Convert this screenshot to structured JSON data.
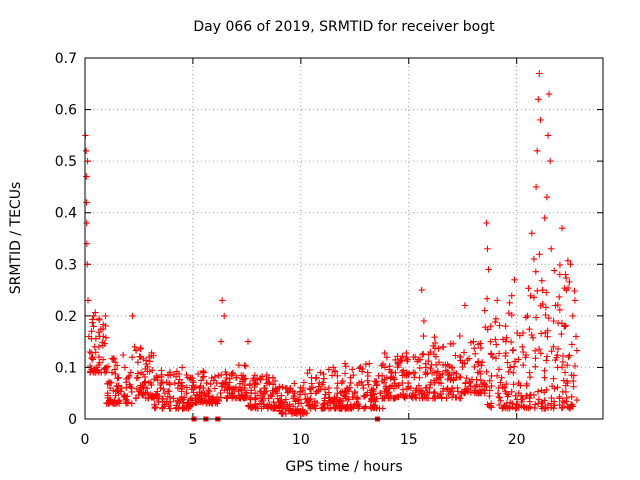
{
  "chart_data": {
    "type": "scatter",
    "title": "Day 066 of 2019, SRMTID for receiver bogt",
    "xlabel": "GPS time / hours",
    "ylabel": "SRMTID / TECUs",
    "xlim": [
      0,
      24
    ],
    "ylim": [
      0,
      0.7
    ],
    "xticks": [
      0,
      5,
      10,
      15,
      20
    ],
    "xtick_labels": [
      "0",
      "5",
      "10",
      "15",
      "20"
    ],
    "yticks": [
      0,
      0.1,
      0.2,
      0.3,
      0.4,
      0.5,
      0.6,
      0.7
    ],
    "ytick_labels": [
      "0",
      "0.1",
      "0.2",
      "0.3",
      "0.4",
      "0.5",
      "0.6",
      "0.7"
    ],
    "grid": true,
    "series": [
      {
        "name": "SRMTID",
        "color": "#ff0000",
        "marker": "plus",
        "points": [
          [
            0.02,
            0.55
          ],
          [
            0.05,
            0.52
          ],
          [
            0.06,
            0.47
          ],
          [
            0.07,
            0.42
          ],
          [
            0.08,
            0.38
          ],
          [
            0.09,
            0.34
          ],
          [
            0.1,
            0.3
          ],
          [
            0.12,
            0.5
          ],
          [
            0.14,
            0.23
          ],
          [
            0.18,
            0.16
          ],
          [
            0.22,
            0.13
          ],
          [
            0.3,
            0.17
          ],
          [
            0.35,
            0.12
          ],
          [
            0.4,
            0.2
          ],
          [
            0.45,
            0.14
          ],
          [
            0.55,
            0.1
          ],
          [
            0.65,
            0.12
          ],
          [
            0.75,
            0.09
          ],
          [
            0.85,
            0.16
          ],
          [
            0.95,
            0.2
          ],
          [
            1.05,
            0.05
          ],
          [
            1.1,
            0.03
          ],
          [
            1.15,
            0.07
          ],
          [
            1.25,
            0.09
          ],
          [
            1.4,
            0.11
          ],
          [
            1.55,
            0.08
          ],
          [
            1.7,
            0.06
          ],
          [
            1.85,
            0.1
          ],
          [
            2.0,
            0.08
          ],
          [
            2.15,
            0.06
          ],
          [
            2.2,
            0.2
          ],
          [
            2.3,
            0.14
          ],
          [
            2.45,
            0.11
          ],
          [
            2.6,
            0.09
          ],
          [
            2.75,
            0.07
          ],
          [
            2.9,
            0.05
          ],
          [
            3.05,
            0.07
          ],
          [
            3.2,
            0.04
          ],
          [
            3.35,
            0.08
          ],
          [
            3.5,
            0.06
          ],
          [
            3.7,
            0.05
          ],
          [
            3.9,
            0.07
          ],
          [
            4.1,
            0.04
          ],
          [
            4.3,
            0.06
          ],
          [
            4.5,
            0.1
          ],
          [
            4.7,
            0.05
          ],
          [
            4.9,
            0.08
          ],
          [
            5.1,
            0.04
          ],
          [
            5.3,
            0.06
          ],
          [
            5.5,
            0.09
          ],
          [
            5.7,
            0.05
          ],
          [
            5.9,
            0.03
          ],
          [
            6.1,
            0.07
          ],
          [
            6.3,
            0.15
          ],
          [
            6.35,
            0.23
          ],
          [
            6.45,
            0.2
          ],
          [
            6.6,
            0.06
          ],
          [
            6.8,
            0.05
          ],
          [
            7.0,
            0.08
          ],
          [
            7.2,
            0.04
          ],
          [
            7.4,
            0.06
          ],
          [
            7.55,
            0.15
          ],
          [
            7.7,
            0.05
          ],
          [
            7.9,
            0.07
          ],
          [
            8.1,
            0.03
          ],
          [
            8.3,
            0.06
          ],
          [
            8.5,
            0.04
          ],
          [
            8.7,
            0.08
          ],
          [
            8.9,
            0.05
          ],
          [
            9.1,
            0.03
          ],
          [
            9.3,
            0.06
          ],
          [
            9.5,
            0.02
          ],
          [
            9.7,
            0.04
          ],
          [
            9.9,
            0.03
          ],
          [
            10.1,
            0.06
          ],
          [
            10.3,
            0.04
          ],
          [
            10.5,
            0.08
          ],
          [
            10.7,
            0.05
          ],
          [
            10.9,
            0.09
          ],
          [
            11.1,
            0.04
          ],
          [
            11.3,
            0.06
          ],
          [
            11.5,
            0.1
          ],
          [
            11.7,
            0.05
          ],
          [
            11.9,
            0.07
          ],
          [
            12.1,
            0.04
          ],
          [
            12.3,
            0.08
          ],
          [
            12.5,
            0.05
          ],
          [
            12.7,
            0.07
          ],
          [
            12.9,
            0.06
          ],
          [
            13.1,
            0.09
          ],
          [
            13.3,
            0.04
          ],
          [
            13.5,
            0.07
          ],
          [
            13.7,
            0.05
          ],
          [
            13.9,
            0.1
          ],
          [
            14.1,
            0.06
          ],
          [
            14.3,
            0.08
          ],
          [
            14.5,
            0.11
          ],
          [
            14.7,
            0.07
          ],
          [
            14.9,
            0.09
          ],
          [
            15.1,
            0.06
          ],
          [
            15.3,
            0.12
          ],
          [
            15.5,
            0.08
          ],
          [
            15.6,
            0.25
          ],
          [
            15.7,
            0.19
          ],
          [
            15.8,
            0.1
          ],
          [
            16.0,
            0.13
          ],
          [
            16.2,
            0.07
          ],
          [
            16.4,
            0.11
          ],
          [
            16.6,
            0.14
          ],
          [
            16.8,
            0.06
          ],
          [
            17.0,
            0.1
          ],
          [
            17.2,
            0.08
          ],
          [
            17.4,
            0.12
          ],
          [
            17.6,
            0.22
          ],
          [
            17.8,
            0.07
          ],
          [
            18.0,
            0.15
          ],
          [
            18.2,
            0.09
          ],
          [
            18.4,
            0.11
          ],
          [
            18.6,
            0.38
          ],
          [
            18.65,
            0.33
          ],
          [
            18.7,
            0.29
          ],
          [
            18.8,
            0.18
          ],
          [
            18.9,
            0.12
          ],
          [
            19.1,
            0.23
          ],
          [
            19.3,
            0.08
          ],
          [
            19.5,
            0.15
          ],
          [
            19.7,
            0.1
          ],
          [
            19.9,
            0.27
          ],
          [
            20.1,
            0.05
          ],
          [
            20.3,
            0.13
          ],
          [
            20.5,
            0.2
          ],
          [
            20.6,
            0.09
          ],
          [
            20.7,
            0.36
          ],
          [
            20.8,
            0.31
          ],
          [
            20.9,
            0.45
          ],
          [
            20.95,
            0.52
          ],
          [
            21.0,
            0.62
          ],
          [
            21.05,
            0.67
          ],
          [
            21.1,
            0.58
          ],
          [
            21.2,
            0.25
          ],
          [
            21.3,
            0.39
          ],
          [
            21.4,
            0.43
          ],
          [
            21.45,
            0.55
          ],
          [
            21.5,
            0.63
          ],
          [
            21.55,
            0.5
          ],
          [
            21.6,
            0.33
          ],
          [
            21.7,
            0.14
          ],
          [
            21.8,
            0.22
          ],
          [
            21.9,
            0.1
          ],
          [
            22.0,
            0.28
          ],
          [
            22.1,
            0.37
          ],
          [
            22.2,
            0.18
          ],
          [
            22.3,
            0.25
          ],
          [
            22.4,
            0.12
          ],
          [
            22.5,
            0.3
          ],
          [
            22.6,
            0.2
          ],
          [
            22.7,
            0.23
          ],
          [
            22.75,
            0.16
          ]
        ]
      }
    ],
    "dense_fill_segments": [
      [
        0.2,
        1.0,
        0.09,
        0.2
      ],
      [
        1.0,
        2.2,
        0.03,
        0.12
      ],
      [
        2.2,
        3.2,
        0.04,
        0.13
      ],
      [
        3.2,
        5.0,
        0.02,
        0.09
      ],
      [
        5.0,
        6.2,
        0.03,
        0.09
      ],
      [
        6.2,
        7.5,
        0.04,
        0.1
      ],
      [
        7.5,
        9.0,
        0.02,
        0.08
      ],
      [
        9.0,
        10.3,
        0.01,
        0.07
      ],
      [
        10.3,
        12.0,
        0.02,
        0.09
      ],
      [
        12.0,
        13.8,
        0.02,
        0.1
      ],
      [
        13.8,
        15.4,
        0.04,
        0.12
      ],
      [
        15.4,
        17.5,
        0.04,
        0.15
      ],
      [
        17.5,
        18.5,
        0.05,
        0.14
      ],
      [
        18.5,
        20.5,
        0.02,
        0.22
      ],
      [
        20.5,
        22.8,
        0.02,
        0.3
      ]
    ],
    "zero_markers": [
      5.05,
      5.6,
      6.15,
      13.55
    ]
  }
}
